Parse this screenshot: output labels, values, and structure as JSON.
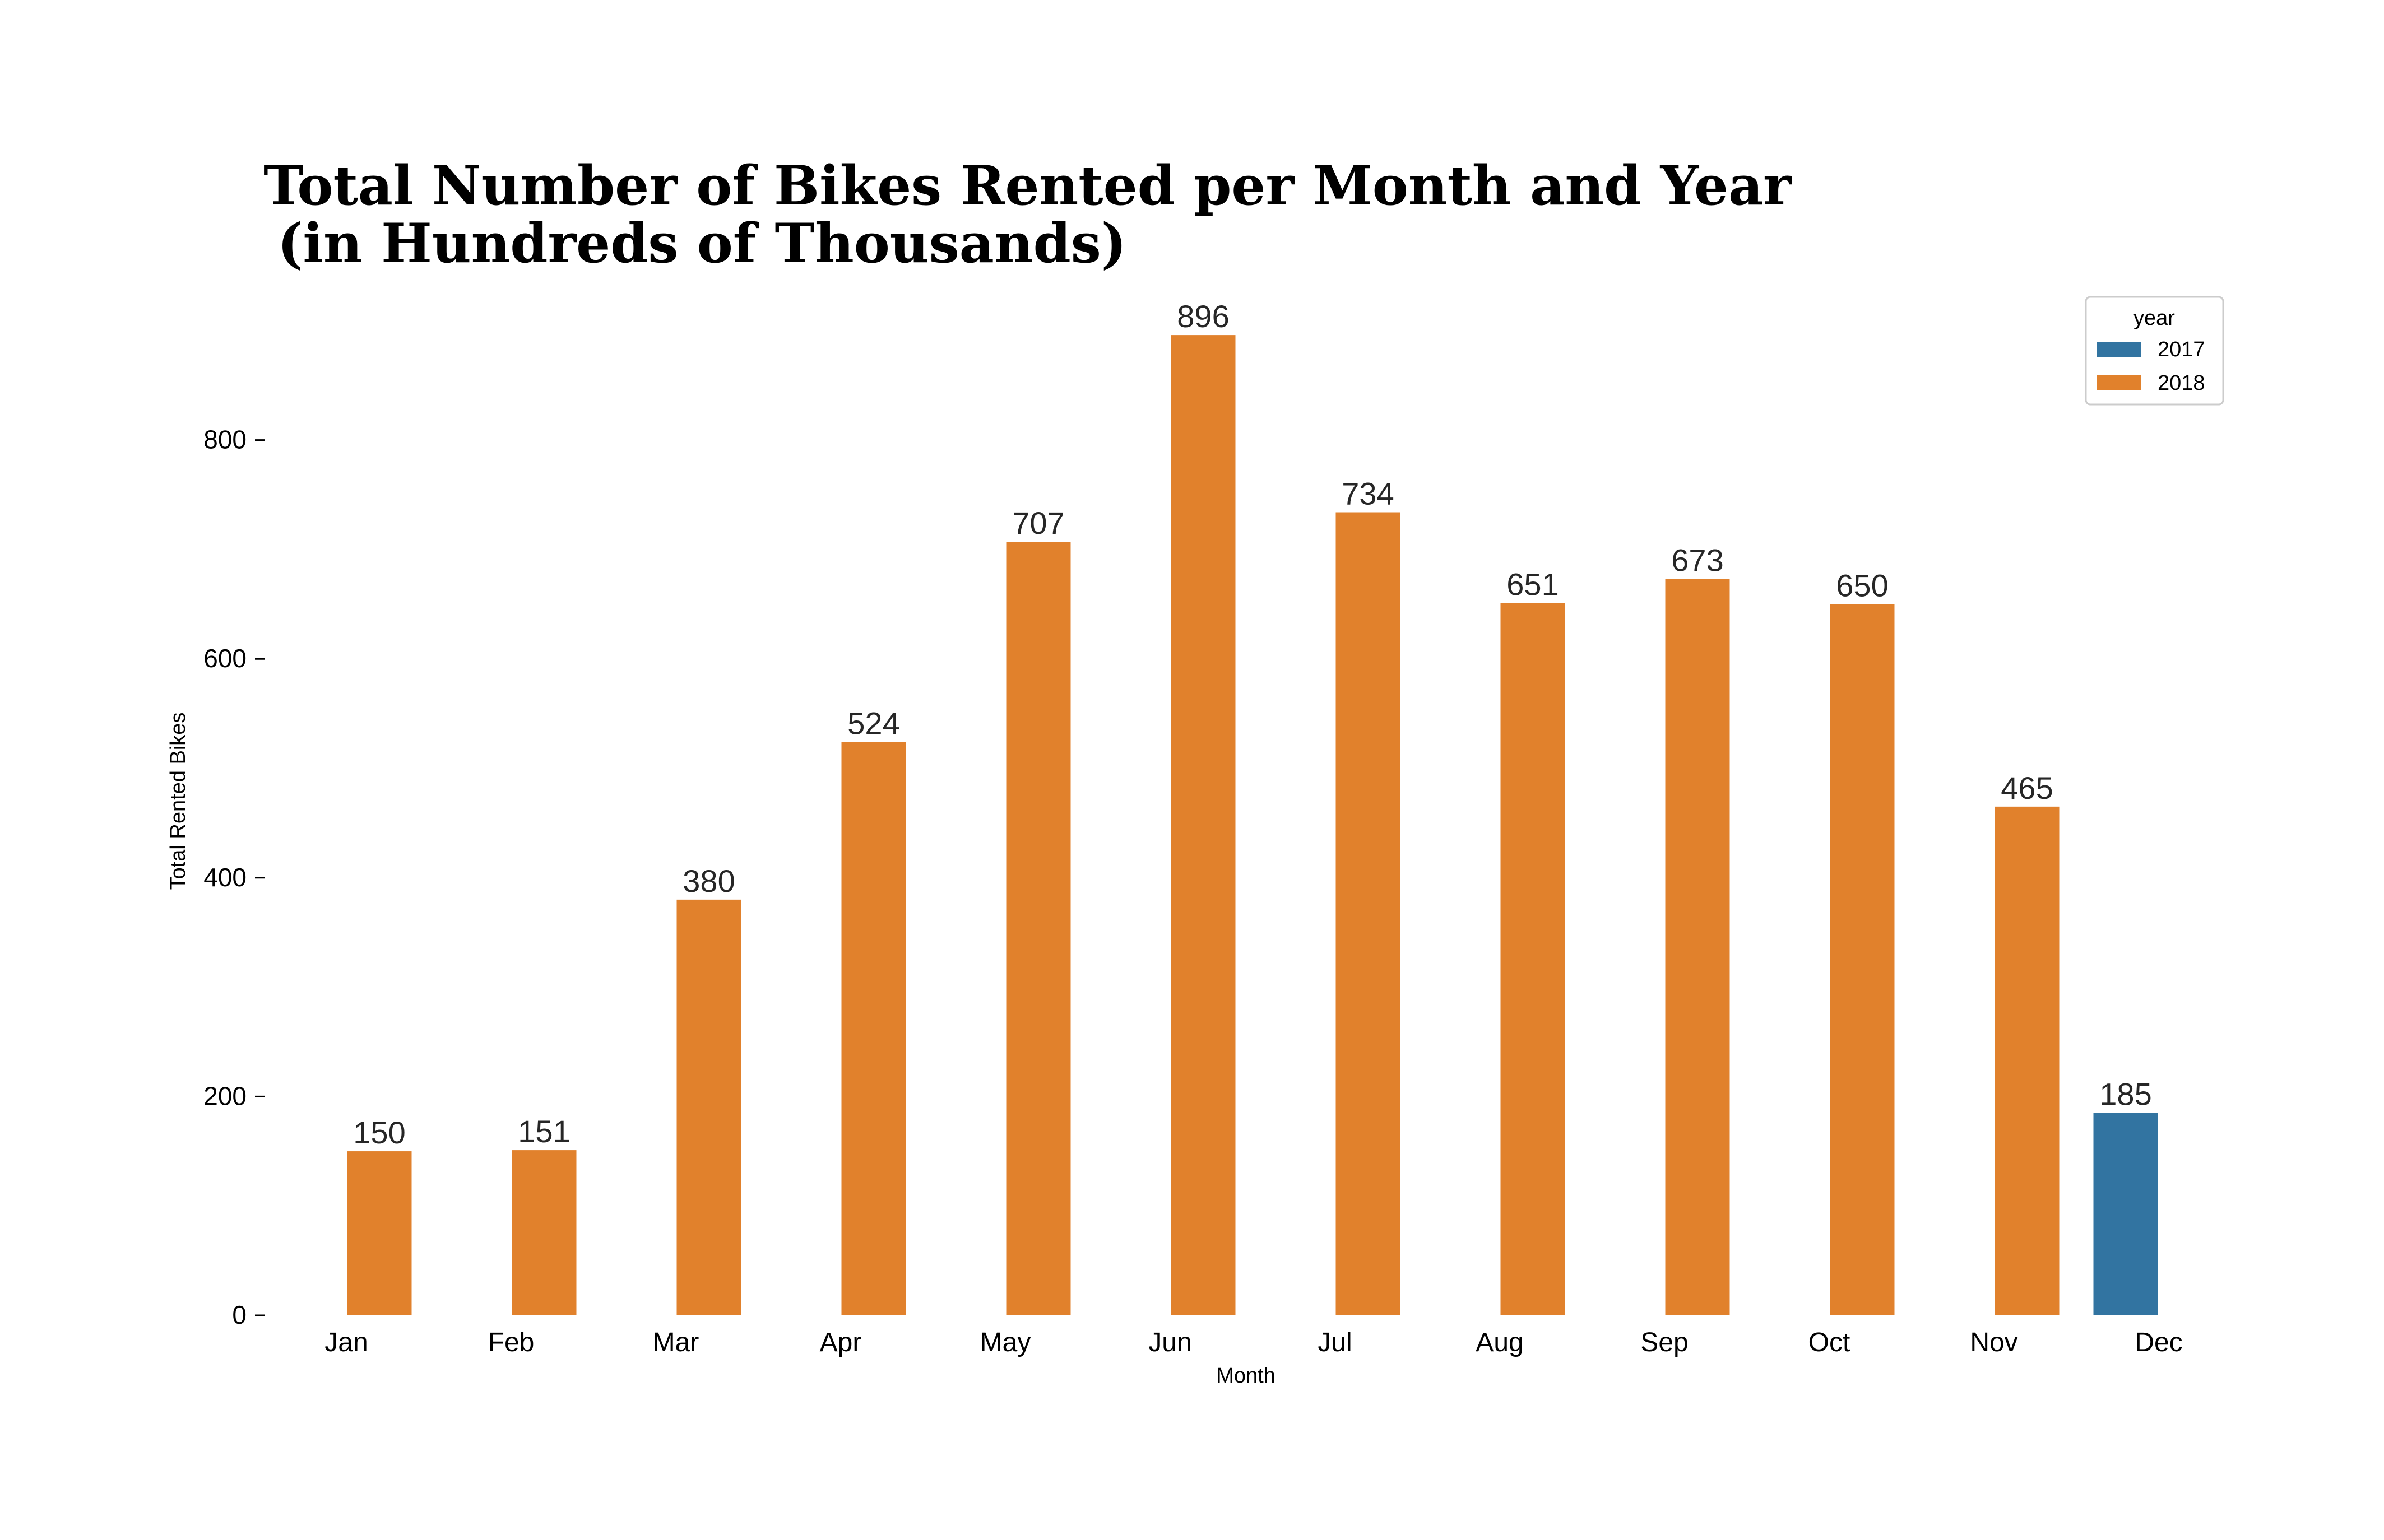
{
  "chart_data": {
    "type": "bar",
    "title": "Total Number of Bikes Rented per Month and Year",
    "subtitle": "(in Hundreds of Thousands)",
    "xlabel": "Month",
    "ylabel": "Total Rented Bikes",
    "categories": [
      "Jan",
      "Feb",
      "Mar",
      "Apr",
      "May",
      "Jun",
      "Jul",
      "Aug",
      "Sep",
      "Oct",
      "Nov",
      "Dec"
    ],
    "series": [
      {
        "name": "2017",
        "color": "#3274a1",
        "values": [
          null,
          null,
          null,
          null,
          null,
          null,
          null,
          null,
          null,
          null,
          null,
          185
        ]
      },
      {
        "name": "2018",
        "color": "#e1812c",
        "values": [
          150,
          151,
          380,
          524,
          707,
          896,
          734,
          651,
          673,
          650,
          465,
          null
        ]
      }
    ],
    "data_labels": [
      "150",
      "151",
      "380",
      "524",
      "707",
      "896",
      "734",
      "651",
      "673",
      "650",
      "465",
      "185"
    ],
    "ylim": [
      0,
      940
    ],
    "yticks": [
      0,
      200,
      400,
      600,
      800
    ],
    "ytick_labels": [
      "0",
      "200",
      "400",
      "600",
      "800"
    ],
    "grid": false,
    "legend": {
      "title": "year",
      "placement": "top-right",
      "entries": [
        "2017",
        "2018"
      ]
    }
  }
}
